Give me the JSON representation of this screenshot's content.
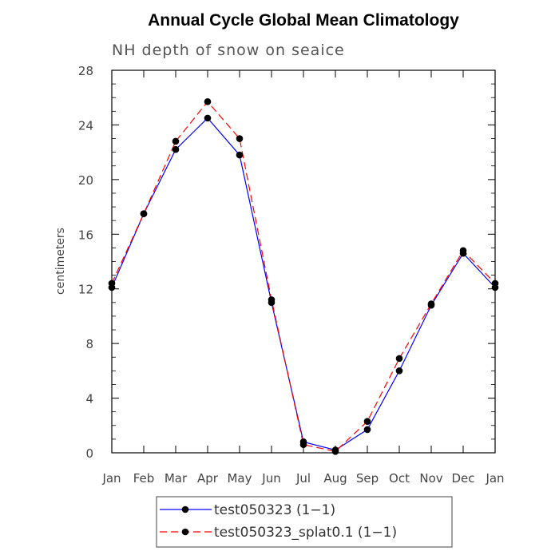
{
  "chart_data": {
    "type": "line",
    "title": "Annual Cycle Global Mean Climatology",
    "subtitle": "NH depth of snow on seaice",
    "xlabel": "",
    "ylabel": "centimeters",
    "categories": [
      "Jan",
      "Feb",
      "Mar",
      "Apr",
      "May",
      "Jun",
      "Jul",
      "Aug",
      "Sep",
      "Oct",
      "Nov",
      "Dec",
      "Jan"
    ],
    "ylim": [
      0,
      28
    ],
    "yticks": [
      "0",
      "4",
      "8",
      "12",
      "16",
      "20",
      "24",
      "28"
    ],
    "grid": false,
    "legend_position": "bottom-center",
    "series": [
      {
        "name": "test050323 (1−1)",
        "color": "#0000ff",
        "dash": "solid",
        "values": [
          12.1,
          17.5,
          22.2,
          24.5,
          21.8,
          11.0,
          0.8,
          0.2,
          1.7,
          6.0,
          10.8,
          14.6,
          12.1
        ]
      },
      {
        "name": "test050323_splat0.1 (1−1)",
        "color": "#ff0000",
        "dash": "dashed",
        "values": [
          12.4,
          17.5,
          22.8,
          25.7,
          23.0,
          11.2,
          0.6,
          0.1,
          2.3,
          6.9,
          10.9,
          14.8,
          12.4
        ]
      }
    ]
  }
}
